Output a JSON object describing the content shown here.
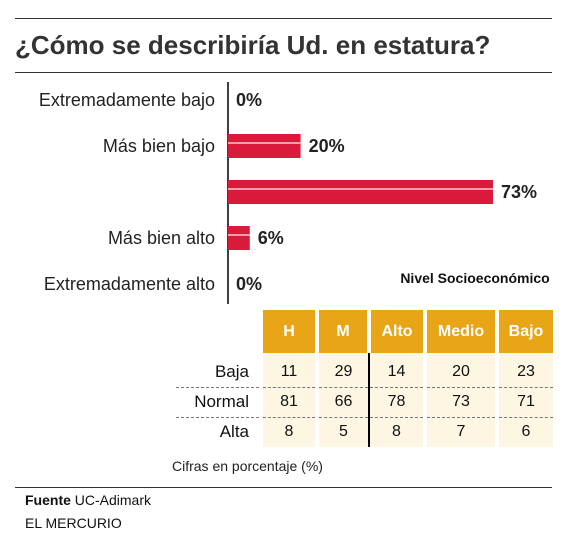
{
  "title": "¿Cómo se describiría Ud. en estatura?",
  "colors": {
    "bar": "#d91a3a",
    "bar_highlight": "#f3a0ac",
    "table_header": "#e8a515",
    "table_cell": "#fdf6e3"
  },
  "chart_data": [
    {
      "type": "bar",
      "orientation": "horizontal",
      "categories": [
        "Extremadamente bajo",
        "Más bien bajo",
        "",
        "Más bien alto",
        "Extremadamente alto"
      ],
      "values": [
        0,
        20,
        73,
        6,
        0
      ],
      "value_labels": [
        "0%",
        "20%",
        "73%",
        "6%",
        "0%"
      ],
      "title": "¿Cómo se describiría Ud. en estatura?"
    },
    {
      "type": "table",
      "group_label": "Nivel Socioeconómico",
      "columns": [
        "H",
        "M",
        "Alto",
        "Medio",
        "Bajo"
      ],
      "rows": [
        {
          "label": "Baja",
          "values": [
            11,
            29,
            14,
            20,
            23
          ]
        },
        {
          "label": "Normal",
          "values": [
            81,
            66,
            78,
            73,
            71
          ]
        },
        {
          "label": "Alta",
          "values": [
            8,
            5,
            8,
            7,
            6
          ]
        }
      ],
      "note": "Cifras en porcentaje (%)"
    }
  ],
  "footer": {
    "source_label": "Fuente",
    "source_value": "UC-Adimark",
    "publisher": "EL MERCURIO"
  }
}
